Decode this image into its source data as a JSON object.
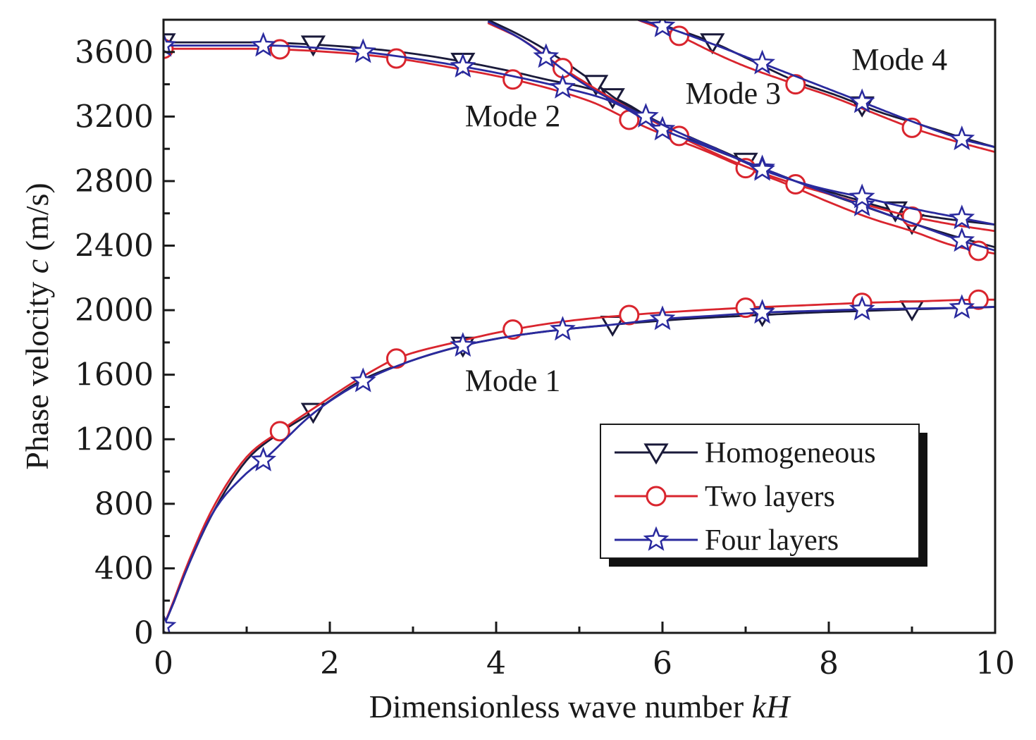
{
  "chart_data": {
    "type": "line",
    "title": "",
    "xlabel": "Dimensionless wave number ",
    "xlabel_italic": "kH",
    "ylabel": "Phase velocity ",
    "ylabel_italic": "c",
    "ylabel_unit": " (m/s)",
    "xlim": [
      0,
      10
    ],
    "ylim": [
      0,
      3800
    ],
    "xticks": [
      0,
      2,
      4,
      6,
      8,
      10
    ],
    "xticks_minor": [
      1,
      3,
      5,
      7,
      9
    ],
    "yticks": [
      0,
      400,
      800,
      1200,
      1600,
      2000,
      2400,
      2800,
      3200,
      3600
    ],
    "mode_labels": [
      {
        "text": "Mode 1",
        "x": 4.2,
        "y": 1500
      },
      {
        "text": "Mode 2",
        "x": 4.2,
        "y": 3140
      },
      {
        "text": "Mode 3",
        "x": 6.85,
        "y": 3280
      },
      {
        "text": "Mode 4",
        "x": 8.85,
        "y": 3490
      }
    ],
    "series": [
      {
        "name": "Homogeneous",
        "color": "#1a1a3a",
        "marker": "triangle-down",
        "modes": [
          {
            "x": [
              0,
              0.1,
              0.3,
              0.6,
              1.0,
              1.4,
              1.8,
              2.4,
              3.0,
              3.6,
              4.2,
              4.8,
              5.4,
              6.0,
              6.6,
              7.2,
              7.8,
              8.4,
              9.0,
              10.0
            ],
            "y": [
              40,
              160,
              420,
              750,
              1070,
              1240,
              1370,
              1570,
              1690,
              1780,
              1840,
              1880,
              1910,
              1935,
              1955,
              1970,
              1985,
              1995,
              2005,
              2020
            ],
            "markers_x": [
              1.8,
              3.6,
              5.4,
              7.2,
              9.0
            ]
          },
          {
            "x": [
              0,
              1.0,
              2.0,
              3.0,
              4.0,
              4.6,
              5.2,
              5.6,
              6.0,
              6.5,
              7.0,
              7.5,
              8.0,
              8.5,
              9.0,
              9.5,
              10.0
            ],
            "y": [
              3660,
              3660,
              3640,
              3590,
              3500,
              3430,
              3360,
              3270,
              3140,
              3020,
              2920,
              2820,
              2720,
              2630,
              2540,
              2460,
              2390
            ],
            "markers_x": [
              0,
              1.8,
              3.6,
              5.4,
              7.0,
              9.0
            ]
          },
          {
            "x": [
              3.9,
              4.3,
              4.7,
              5.1,
              5.5,
              5.9,
              6.3,
              6.7,
              7.1,
              7.5,
              7.9,
              8.3,
              8.7,
              9.1,
              9.5,
              10.0
            ],
            "y": [
              3800,
              3700,
              3580,
              3440,
              3290,
              3180,
              3080,
              2990,
              2900,
              2820,
              2750,
              2690,
              2630,
              2590,
              2560,
              2530
            ],
            "markers_x": [
              5.2,
              8.8
            ]
          },
          {
            "x": [
              5.7,
              6.1,
              6.6,
              7.1,
              7.6,
              8.1,
              8.6,
              9.1,
              9.6,
              10.0
            ],
            "y": [
              3800,
              3750,
              3660,
              3540,
              3420,
              3330,
              3230,
              3150,
              3070,
              3010
            ],
            "markers_x": [
              6.6,
              8.4
            ]
          }
        ]
      },
      {
        "name": "Two layers",
        "color": "#d9252e",
        "marker": "circle",
        "modes": [
          {
            "x": [
              0,
              0.1,
              0.3,
              0.6,
              1.0,
              1.4,
              1.8,
              2.4,
              2.8,
              3.5,
              4.2,
              4.9,
              5.6,
              6.3,
              7.0,
              7.7,
              8.4,
              9.1,
              9.8,
              10.0
            ],
            "y": [
              40,
              170,
              440,
              780,
              1090,
              1250,
              1390,
              1590,
              1700,
              1800,
              1880,
              1935,
              1970,
              1995,
              2015,
              2030,
              2045,
              2055,
              2065,
              2065
            ],
            "markers_x": [
              1.4,
              2.8,
              4.2,
              5.6,
              7.0,
              8.4,
              9.8
            ]
          },
          {
            "x": [
              0,
              1.0,
              2.0,
              2.8,
              3.5,
              4.2,
              4.8,
              5.2,
              5.6,
              6.0,
              6.5,
              7.0,
              7.5,
              8.0,
              8.5,
              9.0,
              9.5,
              10.0
            ],
            "y": [
              3620,
              3620,
              3600,
              3560,
              3500,
              3430,
              3350,
              3280,
              3180,
              3090,
              2990,
              2880,
              2780,
              2670,
              2570,
              2490,
              2400,
              2350
            ],
            "markers_x": [
              0,
              1.4,
              2.8,
              4.2,
              5.6,
              7.0,
              9.8
            ]
          },
          {
            "x": [
              3.9,
              4.3,
              4.8,
              5.2,
              5.6,
              6.0,
              6.2,
              6.6,
              7.0,
              7.6,
              8.0,
              8.4,
              9.0,
              9.5,
              10.0
            ],
            "y": [
              3780,
              3680,
              3500,
              3370,
              3250,
              3140,
              3080,
              2980,
              2890,
              2780,
              2720,
              2660,
              2580,
              2530,
              2490
            ],
            "markers_x": [
              4.8,
              6.2,
              7.6,
              9.0
            ]
          },
          {
            "x": [
              5.7,
              6.2,
              6.6,
              7.0,
              7.6,
              8.0,
              8.4,
              9.0,
              9.5,
              10.0
            ],
            "y": [
              3800,
              3700,
              3600,
              3510,
              3400,
              3330,
              3250,
              3130,
              3050,
              2980
            ],
            "markers_x": [
              6.2,
              7.6,
              9.0
            ]
          }
        ]
      },
      {
        "name": "Four layers",
        "color": "#2a2a9e",
        "marker": "star",
        "modes": [
          {
            "x": [
              0,
              0.1,
              0.3,
              0.6,
              1.0,
              1.2,
              1.8,
              2.4,
              3.0,
              3.6,
              4.2,
              4.8,
              5.4,
              6.0,
              6.6,
              7.2,
              7.8,
              8.4,
              9.0,
              9.6,
              10.0
            ],
            "y": [
              40,
              160,
              420,
              750,
              990,
              1070,
              1360,
              1560,
              1690,
              1780,
              1840,
              1880,
              1910,
              1945,
              1965,
              1985,
              1995,
              2005,
              2010,
              2015,
              2020
            ],
            "markers_x": [
              0,
              1.2,
              2.4,
              3.6,
              4.8,
              6.0,
              7.2,
              8.4,
              9.6
            ]
          },
          {
            "x": [
              0,
              1.2,
              2.4,
              3.0,
              3.6,
              4.2,
              4.8,
              5.4,
              6.0,
              6.5,
              7.2,
              7.8,
              8.4,
              9.0,
              9.6,
              10.0
            ],
            "y": [
              3640,
              3640,
              3600,
              3560,
              3510,
              3450,
              3380,
              3290,
              3120,
              3020,
              2880,
              2760,
              2650,
              2540,
              2430,
              2370
            ],
            "markers_x": [
              0,
              1.2,
              2.4,
              3.6,
              4.8,
              6.0,
              7.2,
              8.4,
              9.6
            ]
          },
          {
            "x": [
              3.9,
              4.3,
              4.6,
              5.0,
              5.4,
              5.8,
              6.2,
              6.6,
              7.2,
              7.8,
              8.4,
              9.0,
              9.6,
              10.0
            ],
            "y": [
              3790,
              3680,
              3570,
              3420,
              3300,
              3200,
              3100,
              3010,
              2870,
              2770,
              2700,
              2630,
              2570,
              2530
            ],
            "markers_x": [
              4.6,
              5.8,
              7.2,
              8.4,
              9.6
            ]
          },
          {
            "x": [
              5.7,
              6.0,
              6.6,
              7.2,
              7.8,
              8.4,
              9.0,
              9.6,
              10.0
            ],
            "y": [
              3800,
              3760,
              3650,
              3530,
              3410,
              3290,
              3170,
              3060,
              3010
            ],
            "markers_x": [
              6.0,
              7.2,
              8.4,
              9.6
            ]
          }
        ]
      }
    ],
    "legend": {
      "position": "lower-right",
      "entries": [
        "Homogeneous",
        "Two layers",
        "Four layers"
      ]
    }
  }
}
